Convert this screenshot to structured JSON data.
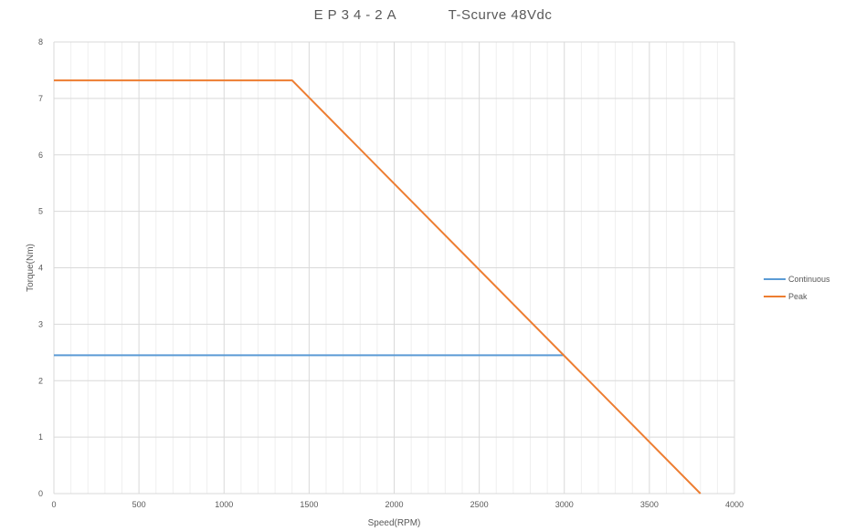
{
  "title": {
    "model": "EP34-2A",
    "curve": "T-Scurve 48Vdc"
  },
  "chart_data": {
    "type": "line",
    "title": "EP34-2A T-Scurve 48Vdc",
    "xlabel": "Speed(RPM)",
    "ylabel": "Torque(Nm)",
    "xlim": [
      0,
      4000
    ],
    "ylim": [
      0,
      8
    ],
    "x_major_ticks": [
      "0",
      "500",
      "1000",
      "1500",
      "2000",
      "2500",
      "3000",
      "3500",
      "4000"
    ],
    "y_major_ticks": [
      "0",
      "1",
      "2",
      "3",
      "4",
      "5",
      "6",
      "7",
      "8"
    ],
    "x_minor_step": 100,
    "grid": true,
    "legend": "right",
    "series": [
      {
        "name": "Continuous",
        "color": "#5B9BD5",
        "x": [
          0,
          3000
        ],
        "y": [
          2.45,
          2.45
        ]
      },
      {
        "name": "Peak",
        "color": "#ED7D31",
        "x": [
          0,
          1400,
          3800
        ],
        "y": [
          7.32,
          7.32,
          0
        ]
      }
    ]
  }
}
